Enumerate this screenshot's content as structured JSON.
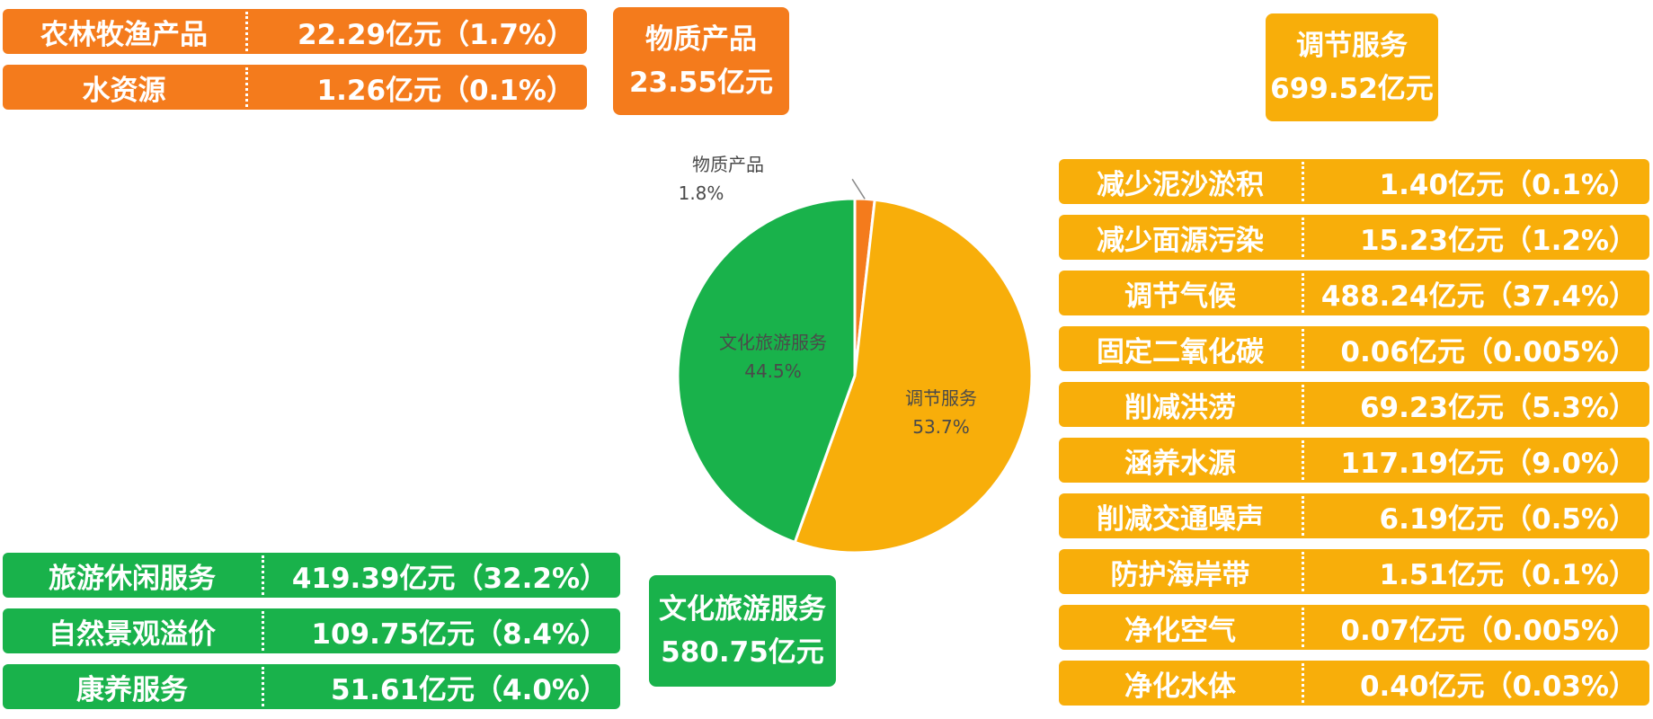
{
  "colors": {
    "material": "#f47b1c",
    "regulating": "#f8ae0a",
    "cultural": "#19b24b"
  },
  "material": {
    "title": "物质产品",
    "total": "23.55亿元",
    "items": [
      {
        "name": "农林牧渔产品",
        "value": "22.29亿元（1.7%）"
      },
      {
        "name": "水资源",
        "value": "1.26亿元（0.1%）"
      }
    ]
  },
  "regulating": {
    "title": "调节服务",
    "total": "699.52亿元",
    "items": [
      {
        "name": "减少泥沙淤积",
        "value": "1.40亿元（0.1%）"
      },
      {
        "name": "减少面源污染",
        "value": "15.23亿元（1.2%）"
      },
      {
        "name": "调节气候",
        "value": "488.24亿元（37.4%）"
      },
      {
        "name": "固定二氧化碳",
        "value": "0.06亿元（0.005%）"
      },
      {
        "name": "削减洪涝",
        "value": "69.23亿元（5.3%）"
      },
      {
        "name": "涵养水源",
        "value": "117.19亿元（9.0%）"
      },
      {
        "name": "削减交通噪声",
        "value": "6.19亿元（0.5%）"
      },
      {
        "name": "防护海岸带",
        "value": "1.51亿元（0.1%）"
      },
      {
        "name": "净化空气",
        "value": "0.07亿元（0.005%）"
      },
      {
        "name": "净化水体",
        "value": "0.40亿元（0.03%）"
      }
    ]
  },
  "cultural": {
    "title": "文化旅游服务",
    "total": "580.75亿元",
    "items": [
      {
        "name": "旅游休闲服务",
        "value": "419.39亿元（32.2%）"
      },
      {
        "name": "自然景观溢价",
        "value": "109.75亿元（8.4%）"
      },
      {
        "name": "康养服务",
        "value": "51.61亿元（4.0%）"
      }
    ]
  },
  "chart_data": {
    "type": "pie",
    "slices": [
      {
        "name": "物质产品",
        "label": "1.8%",
        "value": 1.8,
        "color": "#f47b1c"
      },
      {
        "name": "调节服务",
        "label": "53.7%",
        "value": 53.7,
        "color": "#f8ae0a"
      },
      {
        "name": "文化旅游服务",
        "label": "44.5%",
        "value": 44.5,
        "color": "#19b24b"
      }
    ],
    "start_angle_deg": 0,
    "direction": "clockwise"
  }
}
